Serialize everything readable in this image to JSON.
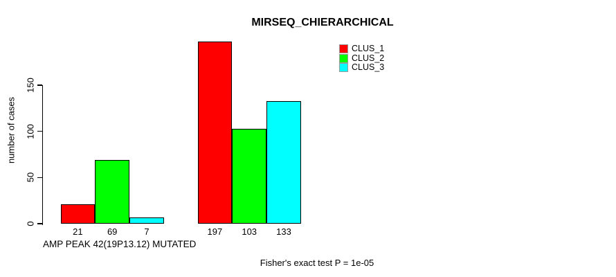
{
  "chart_data": {
    "type": "bar",
    "title": "MIRSEQ_CHIERARCHICAL",
    "ylabel": "number of cases",
    "xlabel": "AMP PEAK 42(19P13.12) MUTATED",
    "footnote": "Fisher's exact test P = 1e-05",
    "ylim": [
      0,
      150
    ],
    "yticks": [
      0,
      50,
      100,
      150
    ],
    "grid": false,
    "legend_position": "top-right",
    "show_bar_values": true,
    "group_labels": [
      "AMP PEAK 42(19P13.12) MUTATED",
      ""
    ],
    "series": [
      {
        "name": "CLUS_1",
        "color": "#ff0000",
        "values": [
          21,
          197
        ]
      },
      {
        "name": "CLUS_2",
        "color": "#00ff00",
        "values": [
          69,
          103
        ]
      },
      {
        "name": "CLUS_3",
        "color": "#00ffff",
        "values": [
          7,
          133
        ]
      }
    ]
  }
}
